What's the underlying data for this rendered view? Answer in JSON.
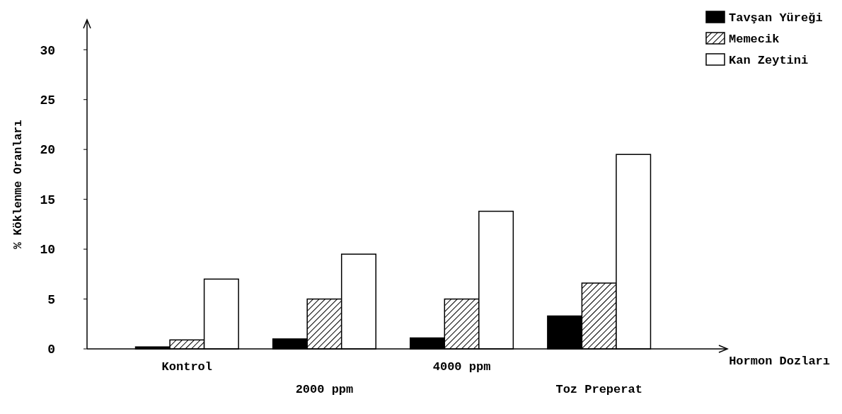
{
  "chart_data": {
    "type": "bar",
    "xlabel": "Hormon Dozları",
    "ylabel": "% Köklenme Oranları",
    "categories": [
      "Kontrol",
      "2000 ppm",
      "4000 ppm",
      "Toz Preperat"
    ],
    "series": [
      {
        "name": "Tavşan Yüreği",
        "color": "#000000",
        "values": [
          0.2,
          1,
          1.1,
          3.3
        ]
      },
      {
        "name": "Memecik",
        "color": "#000000",
        "values": [
          0.9,
          5,
          5,
          6.6
        ]
      },
      {
        "name": "Kan Zeytini",
        "color": "#ffffff",
        "values": [
          7,
          9.5,
          13.8,
          19.5
        ]
      }
    ],
    "ylim": [
      0,
      33
    ],
    "yticks": [
      0,
      5,
      10,
      15,
      20,
      25,
      30
    ],
    "grid": false,
    "legend": "top right"
  }
}
